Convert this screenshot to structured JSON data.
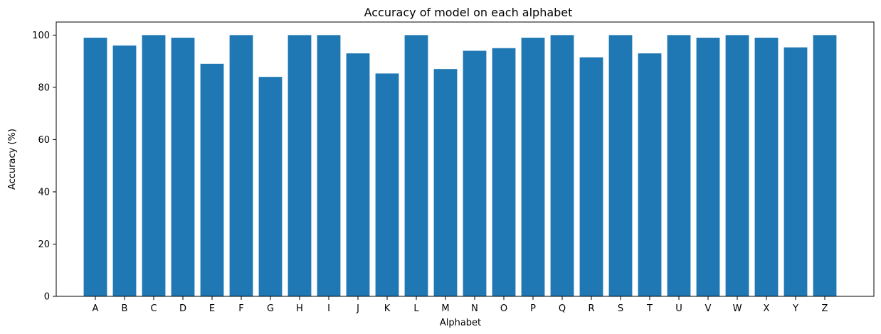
{
  "chart_data": {
    "type": "bar",
    "title": "Accuracy of model on each alphabet",
    "xlabel": "Alphabet",
    "ylabel": "Accuracy (%)",
    "ylim": [
      0,
      105
    ],
    "yticks": [
      0,
      20,
      40,
      60,
      80,
      100
    ],
    "grid": false,
    "bar_color": "#1f77b4",
    "categories": [
      "A",
      "B",
      "C",
      "D",
      "E",
      "F",
      "G",
      "H",
      "I",
      "J",
      "K",
      "L",
      "M",
      "N",
      "O",
      "P",
      "Q",
      "R",
      "S",
      "T",
      "U",
      "V",
      "W",
      "X",
      "Y",
      "Z"
    ],
    "values": [
      99,
      96,
      100,
      99,
      89,
      100,
      84,
      100,
      100,
      93,
      85.3,
      100,
      87,
      94,
      95,
      99,
      100,
      91.5,
      100,
      93,
      100,
      99,
      100,
      99,
      95.3,
      100
    ]
  }
}
